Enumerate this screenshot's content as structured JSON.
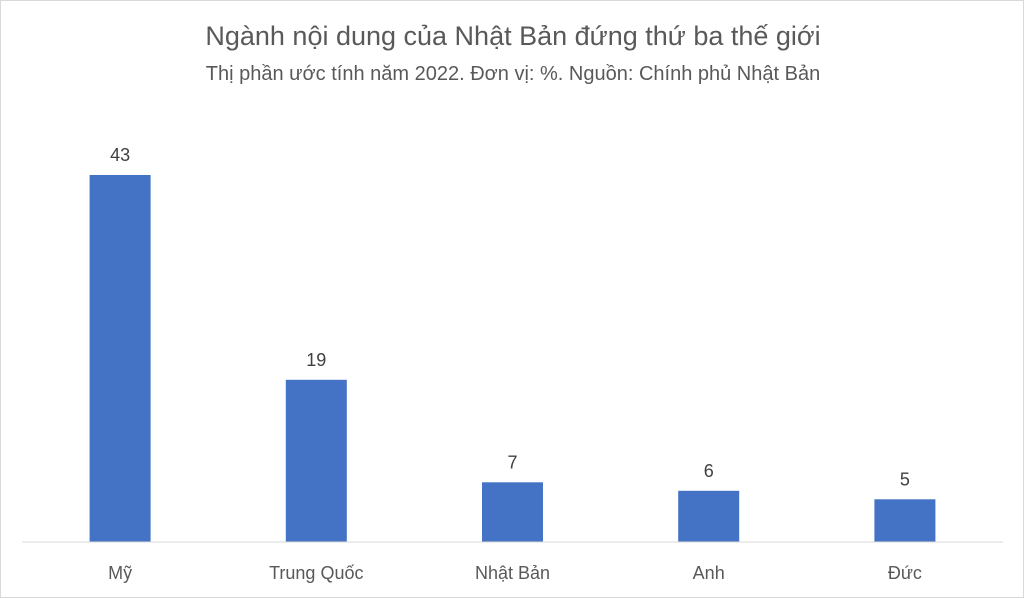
{
  "chart_data": {
    "type": "bar",
    "title": "Ngành nội dung của Nhật Bản đứng thứ ba thế giới",
    "subtitle": "Thị phần ước tính năm 2022. Đơn vị: %. Nguồn: Chính phủ Nhật Bản",
    "categories": [
      "Mỹ",
      "Trung Quốc",
      "Nhật Bản",
      "Anh",
      "Đức"
    ],
    "values": [
      43,
      19,
      7,
      6,
      5
    ],
    "data_labels": [
      "43",
      "19",
      "7",
      "6",
      "5"
    ],
    "ylim": [
      0,
      43
    ],
    "grid": false,
    "legend": "none",
    "bar_color": "#4472c4"
  }
}
